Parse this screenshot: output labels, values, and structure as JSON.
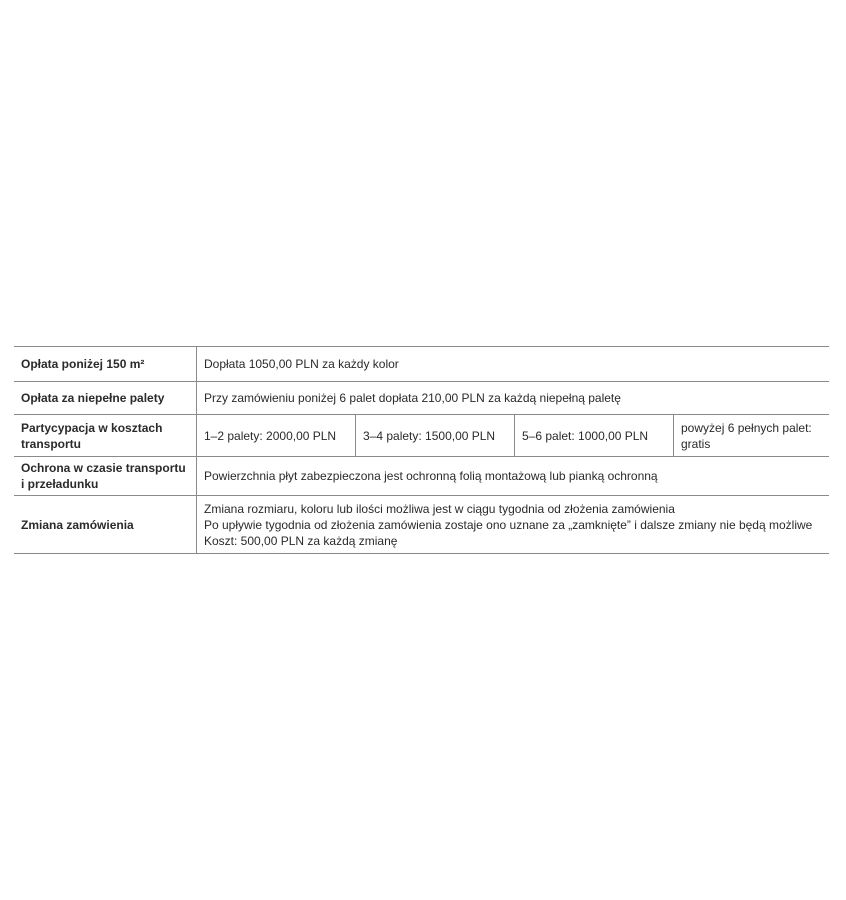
{
  "rows": [
    {
      "label": "Opłata poniżej 150 m²",
      "value": "Dopłata 1050,00 PLN za każdy kolor"
    },
    {
      "label": "Opłata za niepełne palety",
      "value": "Przy zamówieniu poniżej 6 palet dopłata 210,00 PLN za każdą niepełną paletę"
    },
    {
      "label": "Partycypacja w kosztach transportu",
      "cells": [
        "1–2 palety: 2000,00 PLN",
        "3–4 palety: 1500,00 PLN",
        "5–6 palet: 1000,00 PLN",
        "powyżej 6 pełnych palet: gratis"
      ]
    },
    {
      "label": "Ochrona w czasie transportu i przeładunku",
      "value": "Powierzchnia płyt zabezpieczona jest ochronną folią montażową lub pianką ochronną"
    },
    {
      "label": "Zmiana zamówienia",
      "lines": [
        "Zmiana rozmiaru, koloru lub ilości możliwa jest w ciągu tygodnia od złożenia zamówienia",
        "Po upływie tygodnia od złożenia zamówienia zostaje ono uznane za „zamknięte” i dalsze zmiany nie będą możliwe",
        "Koszt: 500,00 PLN za każdą zmianę"
      ]
    }
  ]
}
